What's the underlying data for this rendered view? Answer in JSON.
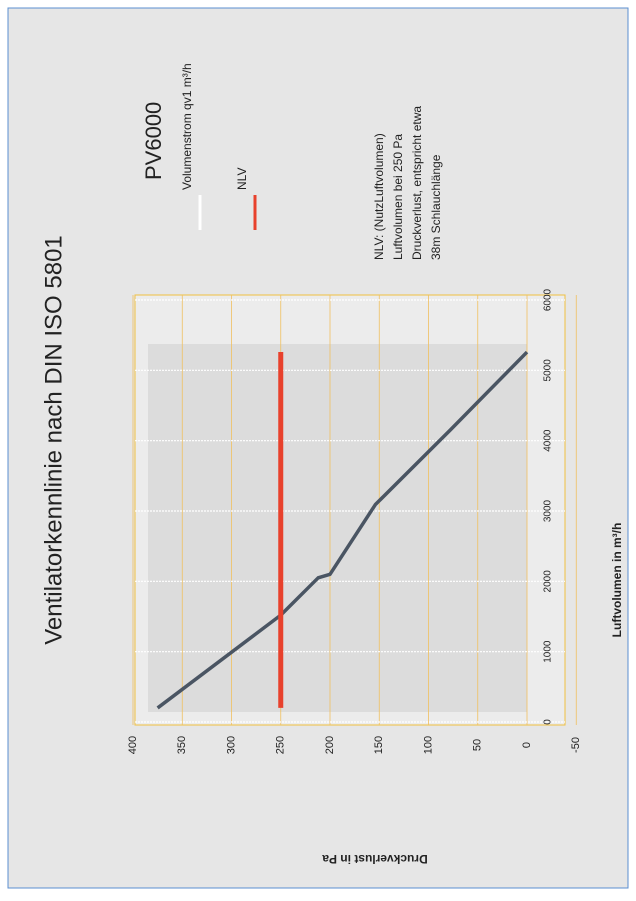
{
  "chart_data": {
    "type": "line",
    "title": "Ventilatorkennlinie nach DIN ISO 5801",
    "legend_title": "PV6000",
    "x_label": "Luftvolumen in m³/h",
    "y_label": "Druckverlust in Pa",
    "note": [
      "NLV: (NutzLuftvolumen)",
      "Luftvolumen bei 250 Pa",
      "Druckverlust, entspricht etwa",
      "38m Schlauchlänge"
    ],
    "xlim": [
      0,
      6000
    ],
    "xticks": [
      0,
      1000,
      2000,
      3000,
      4000,
      5000,
      6000
    ],
    "ylim": [
      -50,
      400
    ],
    "yticks": [
      -50,
      0,
      50,
      100,
      150,
      200,
      250,
      300,
      350,
      400
    ],
    "series": [
      {
        "name": "Volumenstrom qv1 m³/h",
        "color": "#4a5563",
        "legend_color": "#ffffff",
        "x": [
          200,
          1520,
          2050,
          2100,
          3090,
          4150,
          5260
        ],
        "values": [
          375,
          250,
          212,
          200,
          154,
          78,
          0
        ]
      },
      {
        "name": "NLV",
        "color": "#e8412c",
        "legend_color": "#e8412c",
        "x": [
          200,
          5260
        ],
        "values": [
          250,
          250
        ]
      }
    ]
  }
}
